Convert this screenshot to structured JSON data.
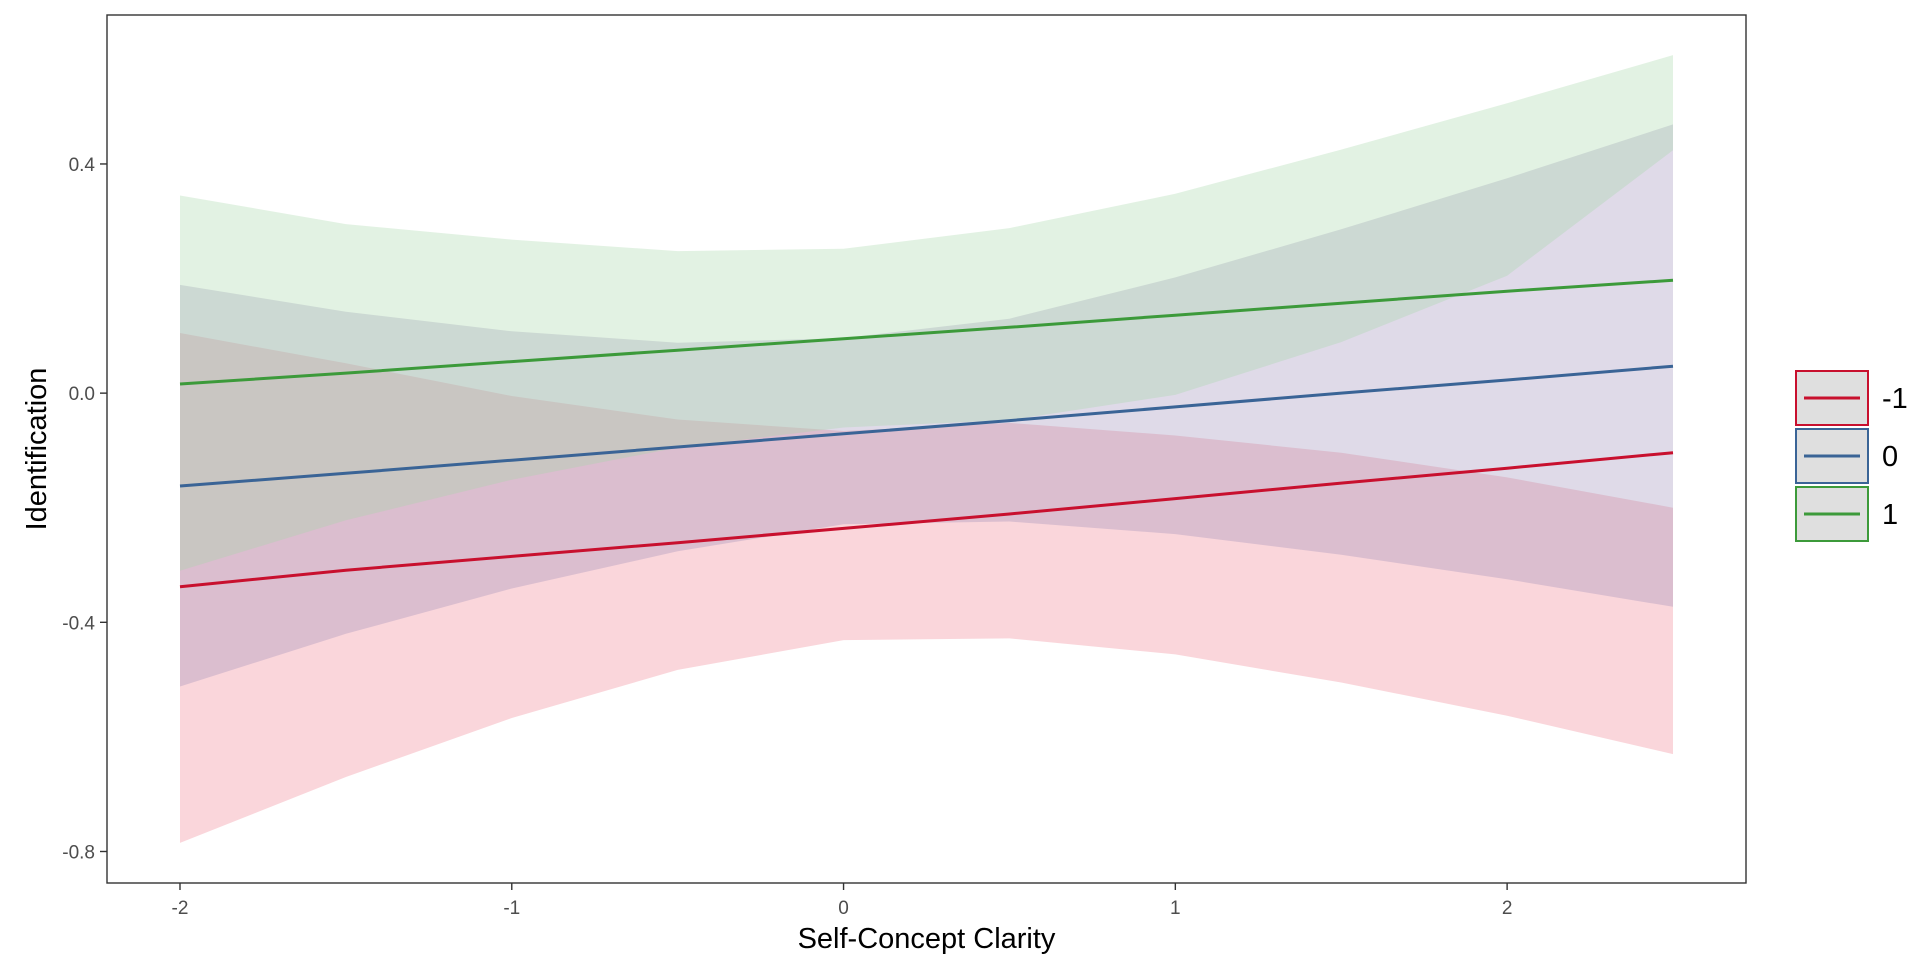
{
  "chart_data": {
    "type": "line",
    "xlabel": "Self-Concept Clarity",
    "ylabel": "Identification",
    "xlim": [
      -2.22,
      2.72
    ],
    "ylim": [
      -0.855,
      0.66
    ],
    "xticks": [
      -2,
      -1,
      0,
      1,
      2
    ],
    "xtick_labels": [
      "-2",
      "-1",
      "0",
      "1",
      "2"
    ],
    "yticks": [
      -0.8,
      -0.4,
      0.0,
      0.4
    ],
    "ytick_labels": [
      "-0.8",
      "-0.4",
      "0.0",
      "0.4"
    ],
    "grid": false,
    "legend_position": "right",
    "x": [
      -2,
      -1.5,
      -1,
      -0.5,
      0,
      0.5,
      1,
      1.5,
      2,
      2.5
    ],
    "series": [
      {
        "name": "-1",
        "color": "#c8102e",
        "fill": "#f08090",
        "values": [
          -0.338,
          -0.309,
          -0.285,
          -0.261,
          -0.236,
          -0.211,
          -0.184,
          -0.157,
          -0.131,
          -0.104
        ],
        "lower": [
          -0.785,
          -0.67,
          -0.567,
          -0.483,
          -0.431,
          -0.428,
          -0.456,
          -0.505,
          -0.563,
          -0.63
        ],
        "upper": [
          0.105,
          0.052,
          -0.005,
          -0.046,
          -0.066,
          -0.052,
          -0.074,
          -0.104,
          -0.147,
          -0.2
        ]
      },
      {
        "name": "0",
        "color": "#3a6496",
        "fill": "#9b8cb6",
        "values": [
          -0.162,
          -0.14,
          -0.117,
          -0.094,
          -0.071,
          -0.048,
          -0.024,
          0.0,
          0.023,
          0.047
        ],
        "lower": [
          -0.512,
          -0.42,
          -0.341,
          -0.276,
          -0.229,
          -0.224,
          -0.246,
          -0.282,
          -0.325,
          -0.373
        ],
        "upper": [
          0.189,
          0.142,
          0.108,
          0.088,
          0.096,
          0.13,
          0.202,
          0.286,
          0.375,
          0.469
        ]
      },
      {
        "name": "1",
        "color": "#3c9a3a",
        "fill": "#a6d7a8",
        "values": [
          0.016,
          0.035,
          0.055,
          0.075,
          0.095,
          0.115,
          0.136,
          0.157,
          0.178,
          0.197
        ],
        "lower": [
          -0.31,
          -0.222,
          -0.151,
          -0.095,
          -0.06,
          -0.047,
          -0.003,
          0.089,
          0.205,
          0.424
        ],
        "upper": [
          0.345,
          0.295,
          0.268,
          0.248,
          0.252,
          0.288,
          0.348,
          0.425,
          0.506,
          0.59
        ]
      }
    ]
  }
}
